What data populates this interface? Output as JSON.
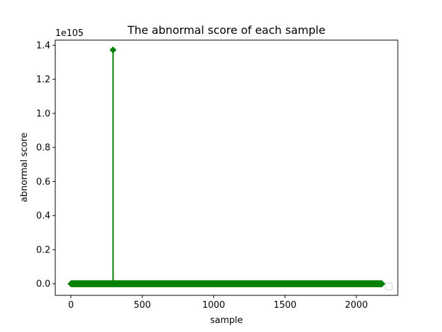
{
  "chart_data": {
    "type": "stem",
    "title": "The abnormal score of each sample",
    "xlabel": "sample",
    "ylabel": "abnormal score",
    "y_multiplier_label": "1e105",
    "y_multiplier": 1e+105,
    "xlim": [
      -110,
      2290
    ],
    "ylim": [
      -0.068,
      1.43
    ],
    "x_ticks": [
      0,
      500,
      1000,
      1500,
      2000
    ],
    "y_ticks": [
      0.0,
      0.2,
      0.4,
      0.6,
      0.8,
      1.0,
      1.2,
      1.4
    ],
    "y_tick_labels": [
      "0.0",
      "0.2",
      "0.4",
      "0.6",
      "0.8",
      "1.0",
      "1.2",
      "1.4"
    ],
    "n_samples": 2180,
    "baseline_value": 0.0,
    "series": [
      {
        "color": "#008000",
        "marker": "diamond",
        "spikes": [
          {
            "x": 295,
            "y": 1.372
          }
        ]
      }
    ],
    "grid": false,
    "legend": "bottom-right-empty"
  }
}
